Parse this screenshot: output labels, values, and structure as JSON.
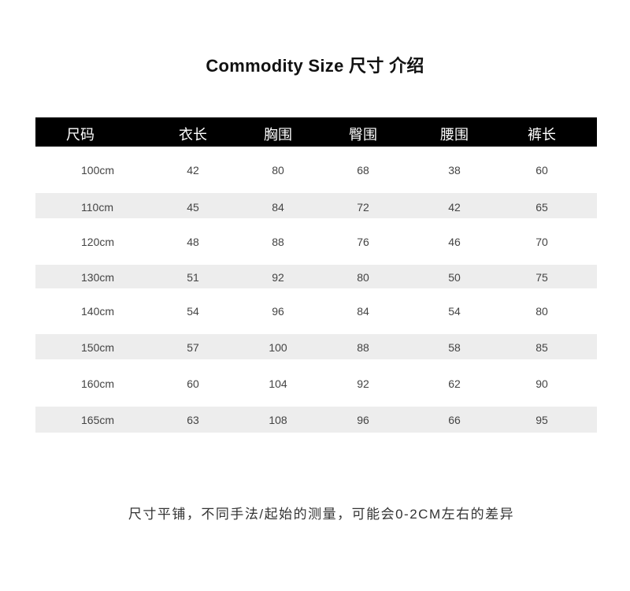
{
  "title": "Commodity Size  尺寸 介绍",
  "table": {
    "headers": [
      "尺码",
      "衣长",
      "胸围",
      "臀围",
      "腰围",
      "裤长"
    ],
    "rows": [
      [
        "100cm",
        "42",
        "80",
        "68",
        "38",
        "60"
      ],
      [
        "110cm",
        "45",
        "84",
        "72",
        "42",
        "65"
      ],
      [
        "120cm",
        "48",
        "88",
        "76",
        "46",
        "70"
      ],
      [
        "130cm",
        "51",
        "92",
        "80",
        "50",
        "75"
      ],
      [
        "140cm",
        "54",
        "96",
        "84",
        "54",
        "80"
      ],
      [
        "150cm",
        "57",
        "100",
        "88",
        "58",
        "85"
      ],
      [
        "160cm",
        "60",
        "104",
        "92",
        "62",
        "90"
      ],
      [
        "165cm",
        "63",
        "108",
        "96",
        "66",
        "95"
      ]
    ]
  },
  "note": "尺寸平铺，不同手法/起始的测量，可能会0-2CM左右的差异",
  "colors": {
    "header_bg": "#000000",
    "stripe": "#ededed"
  }
}
